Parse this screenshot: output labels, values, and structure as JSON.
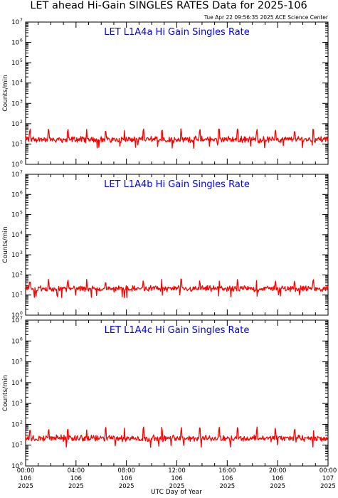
{
  "title": "LET ahead Hi-Gain SINGLES RATES Data for 2025-106",
  "timestamp": "Tue Apr 22 09:56:35 2025 ACE Science Center",
  "colors": {
    "series": "#ff0000",
    "panel_title": "#0000ff",
    "axes": "#000000"
  },
  "xlabel": "UTC Day of Year",
  "chart_data": [
    {
      "type": "line",
      "title": "LET L1A4a Hi Gain Singles Rate",
      "ylabel": "Counts/min",
      "yscale": "log",
      "ylim": [
        1,
        10000000
      ],
      "xlim": [
        0,
        24
      ],
      "x_unit": "hours UTC on day 106",
      "baseline": 17,
      "spike_level": 45,
      "spike_period_hours": 1.5,
      "noise_range": [
        10,
        28
      ]
    },
    {
      "type": "line",
      "title": "LET L1A4b Hi Gain Singles Rate",
      "ylabel": "Counts/min",
      "yscale": "log",
      "ylim": [
        1,
        10000000
      ],
      "xlim": [
        0,
        24
      ],
      "x_unit": "hours UTC on day 106",
      "baseline": 22,
      "spike_level": 50,
      "spike_period_hours": 1.5,
      "noise_range": [
        12,
        32
      ]
    },
    {
      "type": "line",
      "title": "LET L1A4c Hi Gain Singles Rate",
      "ylabel": "Counts/min",
      "yscale": "log",
      "ylim": [
        1,
        10000000
      ],
      "xlim": [
        0,
        24
      ],
      "x_unit": "hours UTC on day 106",
      "baseline": 22,
      "spike_level": 60,
      "spike_period_hours": 1.5,
      "noise_range": [
        12,
        35
      ]
    }
  ],
  "y_ticks": [
    {
      "base": "10",
      "exp": "0"
    },
    {
      "base": "10",
      "exp": "1"
    },
    {
      "base": "10",
      "exp": "2"
    },
    {
      "base": "10",
      "exp": "3"
    },
    {
      "base": "10",
      "exp": "4"
    },
    {
      "base": "10",
      "exp": "5"
    },
    {
      "base": "10",
      "exp": "6"
    },
    {
      "base": "10",
      "exp": "7"
    }
  ],
  "x_ticks": [
    {
      "time": "00:00",
      "doy": "106",
      "year": "2025"
    },
    {
      "time": "04:00",
      "doy": "106",
      "year": "2025"
    },
    {
      "time": "08:00",
      "doy": "106",
      "year": "2025"
    },
    {
      "time": "12:00",
      "doy": "106",
      "year": "2025"
    },
    {
      "time": "16:00",
      "doy": "106",
      "year": "2025"
    },
    {
      "time": "20:00",
      "doy": "106",
      "year": "2025"
    },
    {
      "time": "00:00",
      "doy": "107",
      "year": "2025"
    }
  ]
}
